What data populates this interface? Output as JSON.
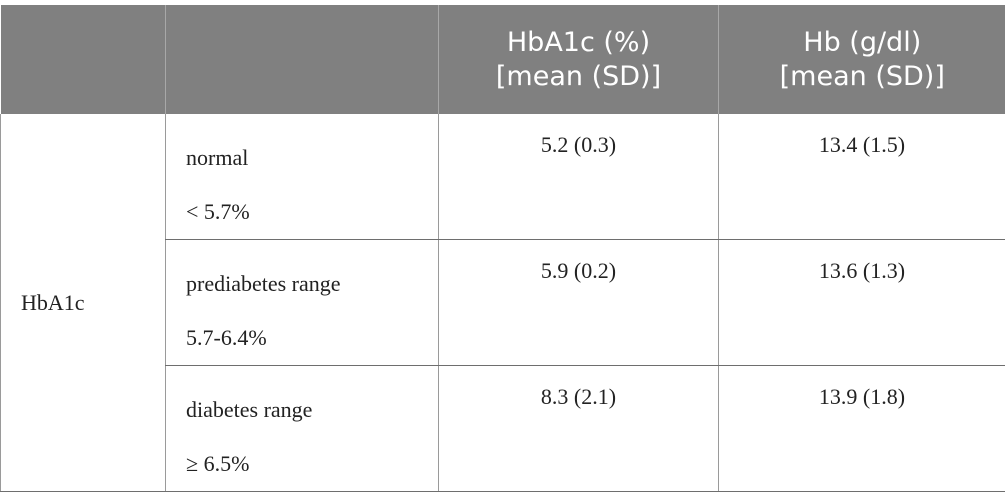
{
  "table": {
    "headers": [
      "",
      "",
      "HbA1c (%)\n[mean (SD)]",
      "Hb (g/dl)\n[mean (SD)]"
    ],
    "header_lines": {
      "col3_line1": "HbA1c (%)",
      "col3_line2": "[mean (SD)]",
      "col4_line1": "Hb (g/dl)",
      "col4_line2": "[mean (SD)]"
    },
    "row_group_label": "HbA1c",
    "rows": [
      {
        "category": "normal",
        "range": "< 5.7%",
        "hba1c": "5.2 (0.3)",
        "hb": "13.4 (1.5)"
      },
      {
        "category": "prediabetes range",
        "range": "5.7-6.4%",
        "hba1c": "5.9 (0.2)",
        "hb": "13.6 (1.3)"
      },
      {
        "category": "diabetes range",
        "range": "≥ 6.5%",
        "hba1c": "8.3 (2.1)",
        "hb": "13.9 (1.8)"
      }
    ]
  },
  "colors": {
    "header_bg": "#808080",
    "header_text": "#ffffff",
    "body_text": "#222222"
  }
}
